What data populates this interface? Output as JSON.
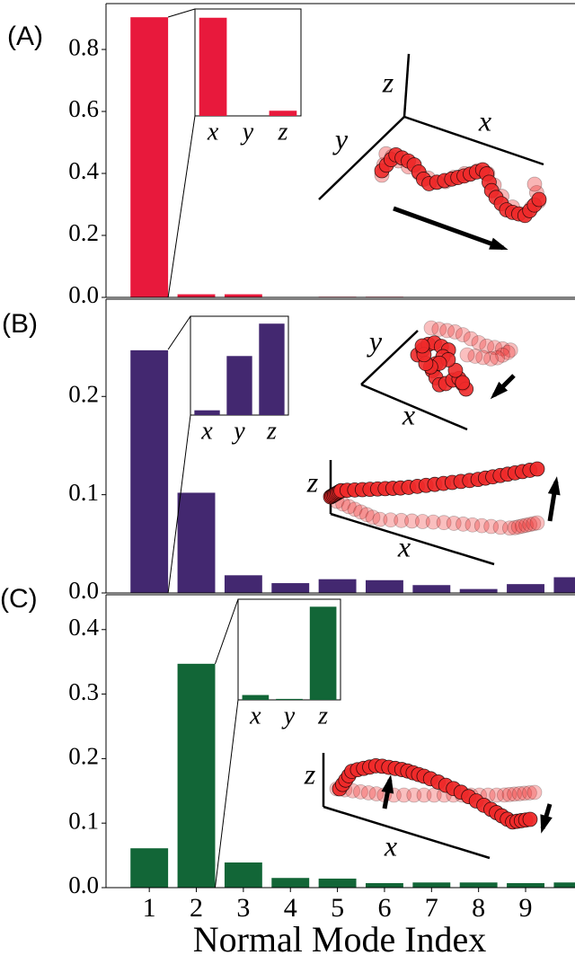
{
  "chart_data": [
    {
      "type": "bar",
      "label": "(A)",
      "x": [
        1,
        2,
        3,
        4,
        5,
        6,
        7,
        8,
        9,
        10
      ],
      "values": [
        0.904,
        0.01,
        0.01,
        0.0,
        0.002,
        0.002,
        0.0,
        0.0,
        0.0,
        0.0
      ],
      "color": "#e8193c",
      "xlim": [
        0.08,
        10.05
      ],
      "ylim": [
        0,
        0.948
      ],
      "yticks": [
        {
          "value": 0,
          "label": "0.0"
        },
        0.2,
        0.4,
        0.6,
        0.8
      ],
      "inset": {
        "categories": [
          "x",
          "y",
          "z"
        ],
        "values": [
          0.95,
          0.0,
          0.05
        ],
        "ylim": [
          0,
          1
        ]
      },
      "diagram_labels": [
        "z",
        "y",
        "x"
      ]
    },
    {
      "type": "bar",
      "label": "(B)",
      "x": [
        1,
        2,
        3,
        4,
        5,
        6,
        7,
        8,
        9,
        10
      ],
      "values": [
        0.247,
        0.102,
        0.018,
        0.01,
        0.014,
        0.013,
        0.008,
        0.004,
        0.009,
        0.016
      ],
      "color": "#432870",
      "xlim": [
        0.08,
        10.05
      ],
      "ylim": [
        0,
        0.299
      ],
      "yticks": [
        {
          "value": 0,
          "label": "0.0"
        },
        0.1,
        0.2
      ],
      "inset": {
        "categories": [
          "x",
          "y",
          "z"
        ],
        "values": [
          0.05,
          0.62,
          0.96
        ],
        "ylim": [
          0,
          1
        ]
      },
      "diagram_labels": [
        "y",
        "x",
        "z",
        "x"
      ]
    },
    {
      "type": "bar",
      "label": "(C)",
      "x": [
        1,
        2,
        3,
        4,
        5,
        6,
        7,
        8,
        9,
        10
      ],
      "values": [
        0.061,
        0.347,
        0.039,
        0.015,
        0.014,
        0.007,
        0.008,
        0.008,
        0.007,
        0.008
      ],
      "color": "#126637",
      "xlim": [
        0.08,
        10.05
      ],
      "ylim": [
        0,
        0.454
      ],
      "yticks": [
        {
          "value": 0,
          "label": "0.0"
        },
        0.1,
        0.2,
        0.3,
        0.4
      ],
      "xticks": [
        1,
        2,
        3,
        4,
        5,
        6,
        7,
        8,
        9
      ],
      "xlabel": "Normal Mode Index",
      "inset": {
        "categories": [
          "x",
          "y",
          "z"
        ],
        "values": [
          0.05,
          0.01,
          0.96
        ],
        "ylim": [
          0,
          1
        ]
      },
      "diagram_labels": [
        "z",
        "x"
      ]
    }
  ]
}
